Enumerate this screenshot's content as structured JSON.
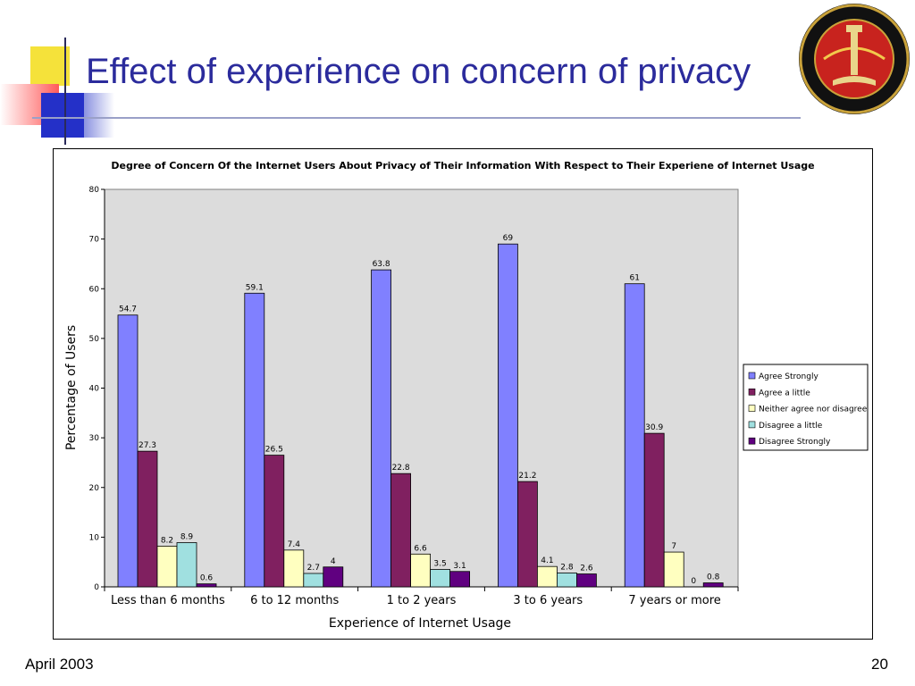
{
  "slide": {
    "title": "Effect of experience on concern of privacy",
    "footer_date": "April 2003",
    "page_number": "20"
  },
  "colors": {
    "title": "#2b2b9c",
    "plot_bg": "#dcdcdc"
  },
  "icons": [
    "university-seal-logo"
  ],
  "chart_data": {
    "type": "bar",
    "title": "Degree of Concern Of the Internet Users About Privacy of Their Information With Respect to Their Experiene of Internet Usage",
    "xlabel": "Experience of Internet Usage",
    "ylabel": "Percentage of Users",
    "ylim": [
      0,
      80
    ],
    "yticks": [
      0,
      10,
      20,
      30,
      40,
      50,
      60,
      70,
      80
    ],
    "grid": false,
    "legend_position": "right",
    "categories": [
      "Less than 6 months",
      "6 to 12 months",
      "1 to 2 years",
      "3 to 6 years",
      "7 years or more"
    ],
    "series": [
      {
        "name": "Agree Strongly",
        "color": "#8080ff",
        "values": [
          54.7,
          59.1,
          63.8,
          69,
          61
        ]
      },
      {
        "name": "Agree a little",
        "color": "#802060",
        "values": [
          27.3,
          26.5,
          22.8,
          21.2,
          30.9
        ]
      },
      {
        "name": "Neither agree nor disagree",
        "color": "#ffffc0",
        "values": [
          8.2,
          7.4,
          6.6,
          4.1,
          7
        ]
      },
      {
        "name": "Disagree a little",
        "color": "#a0e0e0",
        "values": [
          8.9,
          2.7,
          3.5,
          2.8,
          0
        ]
      },
      {
        "name": "Disagree Strongly",
        "color": "#600080",
        "values": [
          0.6,
          4,
          3.1,
          2.6,
          0.8
        ]
      }
    ]
  }
}
